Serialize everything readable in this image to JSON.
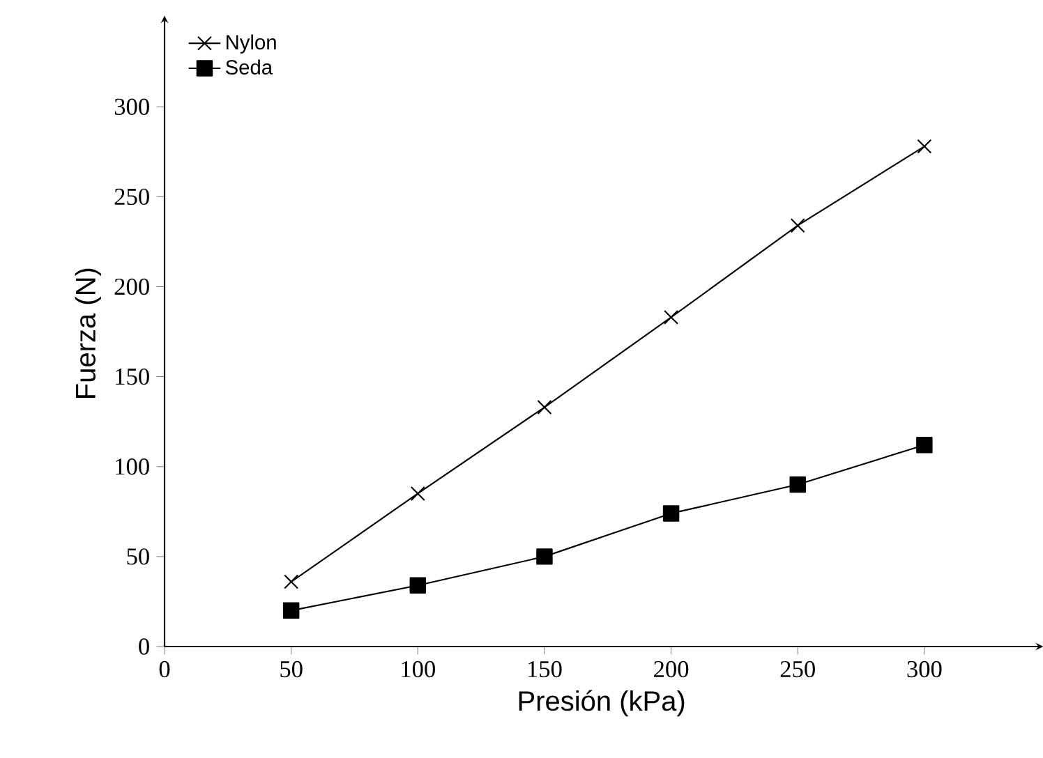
{
  "chart_data": {
    "type": "line",
    "xlabel": "Presión (kPa)",
    "ylabel": "Fuerza (N)",
    "x": [
      50,
      100,
      150,
      200,
      250,
      300
    ],
    "series": [
      {
        "name": "Nylon",
        "color": "#000000",
        "marker": "cross",
        "values": [
          36,
          85,
          133,
          183,
          234,
          278
        ]
      },
      {
        "name": "Seda",
        "color": "#000000",
        "marker": "square",
        "values": [
          20,
          34,
          50,
          74,
          90,
          112
        ]
      }
    ],
    "xlim": [
      0,
      345
    ],
    "ylim": [
      0,
      348
    ],
    "xticks": [
      0,
      50,
      100,
      150,
      200,
      250,
      300
    ],
    "yticks": [
      0,
      50,
      100,
      150,
      200,
      250,
      300
    ],
    "grid": false,
    "legend": "top left",
    "line_style": "solid"
  }
}
